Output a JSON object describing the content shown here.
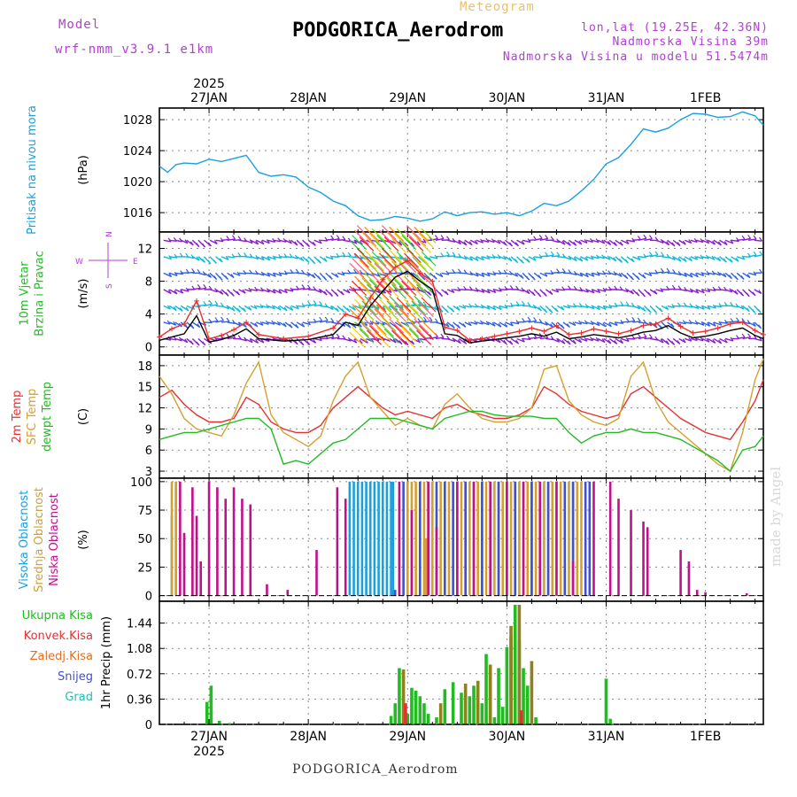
{
  "header": {
    "model_label": "Model",
    "model_value": "wrf-nmm_v3.9.1 e1km",
    "meteogram": "Meteogram",
    "station": "PODGORICA_Aerodrom",
    "lonlat": "lon,lat (19.25E, 42.36N)",
    "elevation": "Nadmorska Visina 39m",
    "model_elevation": "Nadmorska Visina u modelu 51.5474m",
    "footer_station": "PODGORICA_Aerodrom",
    "watermark": "made by Angel"
  },
  "colors": {
    "purple": "#b040d0",
    "cyan": "#1aa0e0",
    "green": "#22bb22",
    "red": "#e63030",
    "orange": "#e07020",
    "gold": "#d4a030",
    "magenta": "#c0108a",
    "blue": "#4050d0",
    "teal": "#20c0b0",
    "olive": "#908020",
    "barb_purple": "#8a1ad0",
    "barb_cyan": "#10b8d8",
    "barb_blue": "#3060e0"
  },
  "time_axis": {
    "top_year": "2025",
    "bottom_year": "2025",
    "days": [
      {
        "label": "27JAN",
        "hour": 0
      },
      {
        "label": "28JAN",
        "hour": 24
      },
      {
        "label": "29JAN",
        "hour": 48
      },
      {
        "label": "30JAN",
        "hour": 72
      },
      {
        "label": "31JAN",
        "hour": 96
      },
      {
        "label": "1FEB",
        "hour": 120
      }
    ]
  },
  "chart_data": [
    {
      "type": "line",
      "ylabel": "(hPa)",
      "side_labels": [
        "Pritisak na nivou mora"
      ],
      "yticks": [
        1016,
        1020,
        1024,
        1028
      ],
      "ylim": [
        1013.5,
        1029.5
      ],
      "series": [
        {
          "color": "cyan",
          "x": [
            -12,
            -10,
            -8,
            -6,
            -3,
            0,
            3,
            6,
            9,
            12,
            15,
            18,
            21,
            24,
            27,
            30,
            33,
            36,
            39,
            42,
            45,
            48,
            51,
            54,
            57,
            60,
            63,
            66,
            69,
            72,
            75,
            78,
            81,
            84,
            87,
            90,
            93,
            96,
            99,
            102,
            105,
            108,
            111,
            114,
            117,
            120,
            123,
            126,
            129,
            132,
            134
          ],
          "y": [
            1022.0,
            1021.2,
            1022.2,
            1022.4,
            1022.3,
            1022.9,
            1022.6,
            1023.0,
            1023.4,
            1021.2,
            1020.7,
            1020.9,
            1020.6,
            1019.3,
            1018.6,
            1017.5,
            1016.9,
            1015.6,
            1015.0,
            1015.1,
            1015.5,
            1015.3,
            1014.9,
            1015.2,
            1016.1,
            1015.6,
            1016.0,
            1016.1,
            1015.8,
            1016.0,
            1015.6,
            1016.2,
            1017.2,
            1016.9,
            1017.5,
            1018.8,
            1020.3,
            1022.3,
            1023.1,
            1024.8,
            1026.8,
            1026.4,
            1026.9,
            1028.0,
            1028.8,
            1028.7,
            1028.3,
            1028.4,
            1029.0,
            1028.5,
            1027.3
          ]
        }
      ]
    },
    {
      "type": "line",
      "ylabel": "(m/s)",
      "side_labels": [
        "10m Vjetar",
        "Brzina i Pravac"
      ],
      "compass": {
        "n": "N",
        "s": "S",
        "e": "E",
        "w": "W"
      },
      "yticks": [
        0,
        4,
        8,
        12
      ],
      "ylim": [
        -1,
        14
      ],
      "barb_levels": [
        1,
        3,
        5,
        7,
        9,
        11,
        13
      ],
      "series": [
        {
          "color": "black",
          "x": [
            -12,
            -9,
            -6,
            -3,
            0,
            3,
            6,
            9,
            12,
            18,
            24,
            30,
            33,
            36,
            39,
            42,
            45,
            48,
            51,
            54,
            57,
            60,
            63,
            66,
            69,
            72,
            75,
            78,
            81,
            84,
            87,
            90,
            93,
            96,
            99,
            102,
            105,
            108,
            111,
            114,
            117,
            120,
            123,
            126,
            129,
            132,
            134
          ],
          "y": [
            0.8,
            1.2,
            1.6,
            3.8,
            0.6,
            0.9,
            1.4,
            2.2,
            1.0,
            0.7,
            0.9,
            1.5,
            3.0,
            2.6,
            5.0,
            6.8,
            8.5,
            9.2,
            8.0,
            7.0,
            1.6,
            1.4,
            0.5,
            0.7,
            0.9,
            1.1,
            1.3,
            1.6,
            1.3,
            1.8,
            1.0,
            1.2,
            1.5,
            1.3,
            1.1,
            1.4,
            1.8,
            2.0,
            2.6,
            1.7,
            1.1,
            1.3,
            1.6,
            2.0,
            2.3,
            1.4,
            1.0
          ]
        },
        {
          "color": "red",
          "x": [
            -12,
            -9,
            -6,
            -3,
            0,
            3,
            6,
            9,
            12,
            18,
            24,
            30,
            33,
            36,
            39,
            42,
            45,
            48,
            51,
            54,
            57,
            60,
            63,
            66,
            69,
            72,
            75,
            78,
            81,
            84,
            87,
            90,
            93,
            96,
            99,
            102,
            105,
            108,
            111,
            114,
            117,
            120,
            123,
            126,
            129,
            132,
            134
          ],
          "y": [
            1.2,
            2.2,
            2.8,
            5.6,
            1.0,
            1.4,
            2.1,
            3.0,
            1.5,
            1.0,
            1.3,
            2.3,
            4.0,
            3.5,
            6.0,
            8.2,
            9.7,
            10.5,
            9.0,
            8.0,
            2.4,
            2.0,
            0.8,
            1.0,
            1.3,
            1.6,
            1.9,
            2.3,
            1.9,
            2.6,
            1.5,
            1.7,
            2.2,
            1.9,
            1.6,
            2.0,
            2.6,
            2.8,
            3.5,
            2.5,
            1.7,
            1.9,
            2.3,
            2.8,
            3.0,
            2.0,
            1.5
          ]
        }
      ]
    },
    {
      "type": "line",
      "ylabel": "(C)",
      "side_labels": [
        "2m Temp",
        "SFC Temp",
        "dewpt Temp"
      ],
      "yticks": [
        3,
        6,
        9,
        12,
        15,
        18
      ],
      "ylim": [
        2,
        19.5
      ],
      "series": [
        {
          "color": "red",
          "x": [
            -12,
            -9,
            -6,
            -3,
            0,
            3,
            6,
            9,
            12,
            15,
            18,
            21,
            24,
            27,
            30,
            33,
            36,
            39,
            42,
            45,
            48,
            51,
            54,
            57,
            60,
            63,
            66,
            69,
            72,
            75,
            78,
            81,
            84,
            87,
            90,
            93,
            96,
            99,
            102,
            105,
            108,
            111,
            114,
            117,
            120,
            123,
            126,
            129,
            132,
            134
          ],
          "y": [
            13.5,
            14.5,
            12.5,
            11.0,
            10.0,
            10.0,
            10.5,
            13.5,
            12.5,
            10.0,
            9.0,
            8.5,
            8.5,
            9.5,
            12.0,
            13.5,
            15.0,
            13.5,
            12.0,
            11.0,
            11.5,
            11.0,
            10.5,
            12.0,
            12.5,
            11.5,
            11.0,
            10.5,
            10.5,
            11.0,
            12.0,
            15.0,
            14.0,
            12.5,
            11.5,
            11.0,
            10.5,
            11.0,
            14.0,
            15.0,
            13.5,
            12.0,
            10.5,
            9.5,
            8.5,
            8.0,
            7.5,
            10.0,
            13.0,
            16.0
          ]
        },
        {
          "color": "gold",
          "x": [
            -12,
            -9,
            -6,
            -3,
            0,
            3,
            6,
            9,
            12,
            15,
            18,
            21,
            24,
            27,
            30,
            33,
            36,
            39,
            42,
            45,
            48,
            51,
            54,
            57,
            60,
            63,
            66,
            69,
            72,
            75,
            78,
            81,
            84,
            87,
            90,
            93,
            96,
            99,
            102,
            105,
            108,
            111,
            114,
            117,
            120,
            123,
            126,
            129,
            132,
            134
          ],
          "y": [
            16.5,
            14.0,
            10.5,
            9.0,
            8.5,
            8.0,
            11.0,
            15.5,
            18.5,
            11.0,
            8.5,
            7.5,
            6.5,
            8.0,
            13.0,
            16.5,
            18.5,
            13.5,
            11.5,
            9.5,
            10.5,
            9.5,
            9.0,
            12.5,
            14.0,
            12.0,
            10.5,
            10.0,
            10.0,
            10.5,
            12.0,
            17.5,
            18.0,
            13.0,
            11.0,
            10.0,
            9.5,
            10.5,
            16.5,
            18.5,
            13.0,
            10.0,
            8.5,
            7.0,
            5.5,
            4.0,
            3.0,
            8.5,
            16.0,
            19.0
          ]
        },
        {
          "color": "green",
          "x": [
            -12,
            -9,
            -6,
            -3,
            0,
            3,
            6,
            9,
            12,
            15,
            18,
            21,
            24,
            27,
            30,
            33,
            36,
            39,
            42,
            45,
            48,
            51,
            54,
            57,
            60,
            63,
            66,
            69,
            72,
            75,
            78,
            81,
            84,
            87,
            90,
            93,
            96,
            99,
            102,
            105,
            108,
            111,
            114,
            117,
            120,
            123,
            126,
            129,
            132,
            134
          ],
          "y": [
            7.5,
            8.0,
            8.5,
            8.5,
            9.0,
            9.5,
            10.0,
            10.5,
            10.5,
            9.0,
            4.0,
            4.5,
            4.0,
            5.5,
            7.0,
            7.5,
            9.0,
            10.5,
            10.5,
            10.5,
            10.0,
            9.5,
            9.0,
            10.5,
            11.0,
            11.5,
            11.5,
            11.0,
            10.8,
            10.8,
            10.8,
            10.5,
            10.5,
            8.5,
            7.0,
            8.0,
            8.5,
            8.5,
            9.0,
            8.5,
            8.5,
            8.0,
            7.5,
            6.5,
            5.5,
            4.5,
            3.0,
            6.0,
            6.5,
            8.0
          ]
        }
      ]
    },
    {
      "type": "bar",
      "ylabel": "(%)",
      "side_labels": [
        "Visoka Oblacnost",
        "Srednja Oblacnost",
        "Niska Oblacnost"
      ],
      "yticks": [
        0,
        25,
        50,
        75,
        100
      ],
      "ylim": [
        -5,
        103
      ],
      "series": [
        {
          "color": "cyan",
          "x": [
            -9,
            -8,
            34,
            35,
            36,
            37,
            38,
            39,
            40,
            41,
            42,
            43,
            44,
            44.5
          ],
          "values": [
            70,
            100,
            100,
            100,
            100,
            100,
            100,
            100,
            100,
            100,
            100,
            100,
            100,
            100
          ]
        },
        {
          "color": "gold",
          "x": [
            -9,
            -8,
            46,
            48,
            49,
            50,
            51,
            52,
            52.5,
            53,
            54,
            56,
            58,
            60,
            61,
            62,
            63,
            64,
            65,
            66,
            67,
            68,
            69,
            70,
            71,
            72,
            73,
            74,
            75,
            76,
            77,
            78,
            79,
            80,
            81,
            82,
            83,
            84,
            85,
            86,
            87,
            88,
            89,
            90
          ],
          "values": [
            100,
            100,
            85,
            100,
            100,
            100,
            100,
            100,
            50,
            100,
            100,
            100,
            100,
            100,
            100,
            100,
            100,
            100,
            100,
            100,
            100,
            100,
            100,
            100,
            100,
            100,
            100,
            100,
            100,
            100,
            100,
            100,
            100,
            100,
            100,
            100,
            100,
            100,
            100,
            28,
            100,
            100,
            100,
            100
          ]
        },
        {
          "color": "blue",
          "x": [
            45,
            47,
            51,
            55,
            57,
            59,
            62,
            66,
            70,
            74,
            78,
            82,
            86,
            88,
            91,
            92
          ],
          "values": [
            5,
            100,
            100,
            100,
            100,
            100,
            100,
            100,
            100,
            100,
            100,
            100,
            100,
            100,
            100,
            100
          ]
        },
        {
          "color": "magenta",
          "x": [
            -7,
            -6,
            -4,
            -3,
            -2,
            0,
            2,
            4,
            6,
            8,
            10,
            14,
            19,
            26,
            31,
            33,
            46,
            49,
            53,
            55,
            60,
            64,
            68,
            72,
            76,
            80,
            84,
            88,
            93,
            97,
            99,
            102,
            105,
            106,
            114,
            116,
            118,
            120,
            130
          ],
          "values": [
            100,
            55,
            95,
            70,
            30,
            100,
            95,
            85,
            95,
            85,
            80,
            10,
            5,
            40,
            95,
            85,
            100,
            75,
            100,
            60,
            100,
            100,
            100,
            100,
            100,
            100,
            100,
            30,
            100,
            100,
            85,
            75,
            65,
            60,
            40,
            30,
            5,
            3,
            2
          ]
        }
      ]
    },
    {
      "type": "bar",
      "ylabel": "1hr Precip (mm)",
      "side_labels": [
        "Ukupna Kisa",
        "Konvek.Kisa",
        "Zaledj.Kisa",
        "Snijeg",
        "Grad"
      ],
      "yticks": [
        0,
        0.36,
        0.72,
        1.08,
        1.44
      ],
      "ytick_labels": [
        "0",
        "0.36",
        "0.72",
        "1.08",
        "1.44"
      ],
      "ylim": [
        0,
        1.75
      ],
      "series": [
        {
          "color": "green",
          "x": [
            -0.5,
            0.5,
            2.5,
            5,
            44,
            45,
            46,
            48,
            49,
            50,
            51,
            52,
            53,
            55,
            57,
            59,
            61,
            63,
            64,
            66,
            67,
            69,
            70,
            71,
            72,
            73,
            74,
            75,
            76,
            77,
            79,
            96,
            97
          ],
          "values": [
            0.32,
            0.55,
            0.05,
            0.02,
            0.12,
            0.3,
            0.8,
            0.15,
            0.52,
            0.48,
            0.4,
            0.3,
            0.15,
            0.1,
            0.5,
            0.6,
            0.45,
            0.4,
            0.55,
            0.3,
            1.0,
            0.1,
            0.8,
            0.25,
            1.1,
            1.25,
            1.7,
            1.2,
            0.8,
            0.55,
            0.1,
            0.65,
            0.08
          ]
        },
        {
          "color": "olive",
          "x": [
            47,
            56,
            62,
            65,
            68,
            73,
            75,
            78
          ],
          "values": [
            0.78,
            0.3,
            0.58,
            0.62,
            0.85,
            1.4,
            1.7,
            0.9
          ]
        },
        {
          "color": "red",
          "x": [
            47.5,
            75.5
          ],
          "values": [
            0.3,
            0.2
          ]
        }
      ]
    }
  ]
}
